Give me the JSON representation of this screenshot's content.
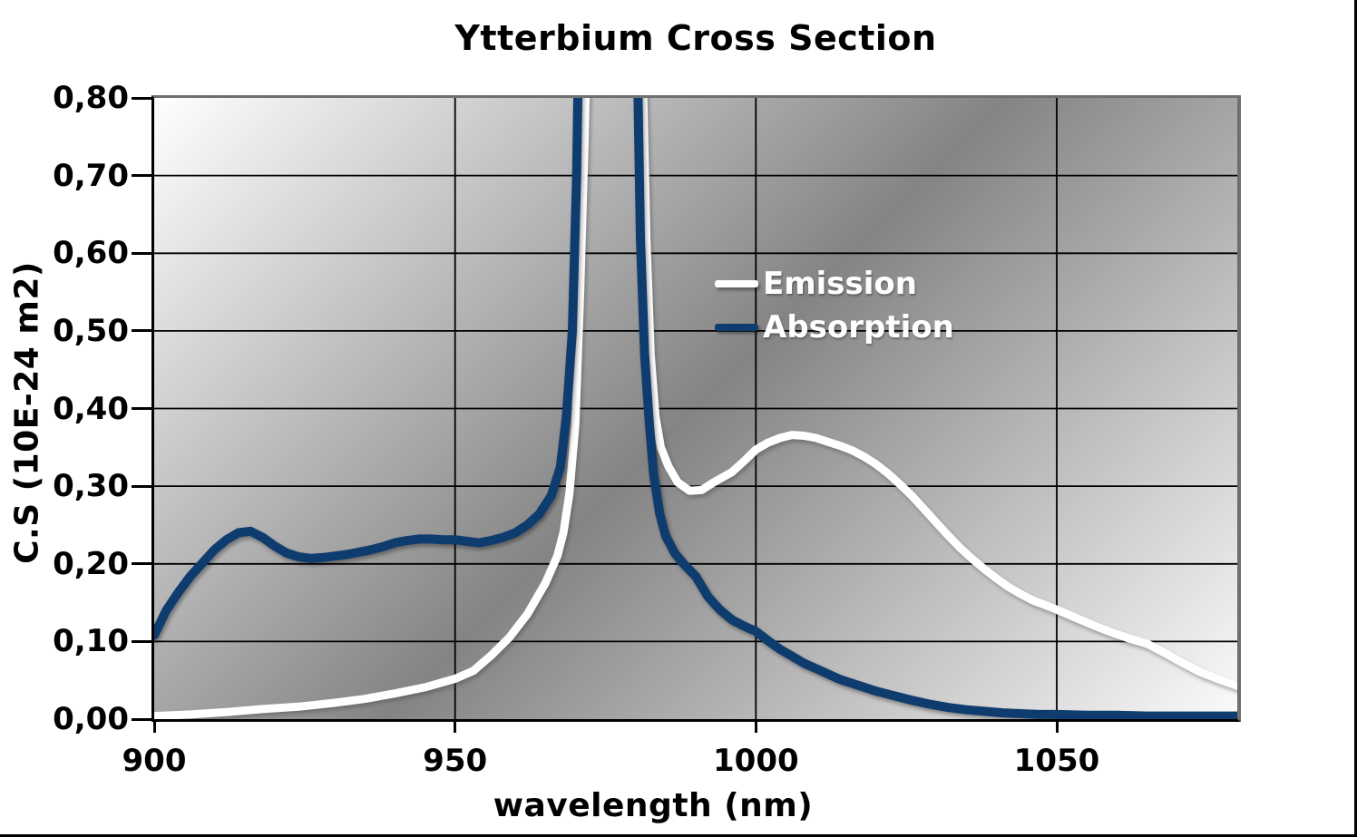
{
  "title": "Ytterbium Cross Section",
  "colors": {
    "emission_line": "#ffffff",
    "absorption_line": "#0f3c6e",
    "gridline": "#000000",
    "plot_border_gray": "#6f6f6f",
    "axis_line": "#000000",
    "plot_gradient": [
      "#ffffff",
      "#848484",
      "#fbfbfb"
    ],
    "page_background": "#ffffff"
  },
  "chart_data": {
    "type": "line",
    "title": "Ytterbium Cross Section",
    "xlabel": "wavelength (nm)",
    "ylabel": "C.S (10E-24 m2)",
    "xlim": [
      900,
      1080
    ],
    "ylim": [
      0,
      0.8
    ],
    "grid": true,
    "plot_background": "diagonal gradient, white at top-left and bottom-right, gray in the middle band",
    "legend": {
      "position": "inside, upper middle of plot",
      "entries": [
        "Emission",
        "Absorption"
      ]
    },
    "x_ticks": [
      {
        "value": 900,
        "label": "900"
      },
      {
        "value": 950,
        "label": "950"
      },
      {
        "value": 1000,
        "label": "1000"
      },
      {
        "value": 1050,
        "label": "1050"
      }
    ],
    "y_ticks": [
      {
        "value": 0.8,
        "label": "0,80"
      },
      {
        "value": 0.7,
        "label": "0,70"
      },
      {
        "value": 0.6,
        "label": "0,60"
      },
      {
        "value": 0.5,
        "label": "0,50"
      },
      {
        "value": 0.4,
        "label": "0,40"
      },
      {
        "value": 0.3,
        "label": "0,30"
      },
      {
        "value": 0.2,
        "label": "0,20"
      },
      {
        "value": 0.1,
        "label": "0,10"
      },
      {
        "value": 0.0,
        "label": "0,00"
      }
    ],
    "off_scale_note": "Both curves spike off-scale (> 0.80) between ~970 nm and ~981 nm; points with value 0.9 represent the clipped peak segments.",
    "series": [
      {
        "name": "Emission",
        "color": "#ffffff",
        "stroke_width": 9,
        "points": [
          [
            900,
            0.004
          ],
          [
            906,
            0.006
          ],
          [
            912,
            0.009
          ],
          [
            918,
            0.013
          ],
          [
            924,
            0.016
          ],
          [
            930,
            0.021
          ],
          [
            935,
            0.026
          ],
          [
            940,
            0.033
          ],
          [
            945,
            0.041
          ],
          [
            950,
            0.052
          ],
          [
            953,
            0.062
          ],
          [
            956,
            0.082
          ],
          [
            959,
            0.105
          ],
          [
            962,
            0.135
          ],
          [
            965,
            0.175
          ],
          [
            967,
            0.21
          ],
          [
            968,
            0.24
          ],
          [
            969,
            0.29
          ],
          [
            970,
            0.38
          ],
          [
            970.8,
            0.55
          ],
          [
            971.5,
            0.74
          ],
          [
            972,
            0.9
          ],
          [
            981,
            0.9
          ],
          [
            981.8,
            0.62
          ],
          [
            982.5,
            0.47
          ],
          [
            983.3,
            0.39
          ],
          [
            984.2,
            0.35
          ],
          [
            985.5,
            0.325
          ],
          [
            987,
            0.305
          ],
          [
            989,
            0.294
          ],
          [
            991,
            0.295
          ],
          [
            993,
            0.305
          ],
          [
            996,
            0.318
          ],
          [
            998,
            0.332
          ],
          [
            1000,
            0.347
          ],
          [
            1002,
            0.356
          ],
          [
            1004,
            0.362
          ],
          [
            1006,
            0.366
          ],
          [
            1008,
            0.365
          ],
          [
            1010,
            0.362
          ],
          [
            1012,
            0.357
          ],
          [
            1014,
            0.352
          ],
          [
            1016,
            0.346
          ],
          [
            1018,
            0.338
          ],
          [
            1020,
            0.328
          ],
          [
            1022,
            0.316
          ],
          [
            1024,
            0.302
          ],
          [
            1026,
            0.287
          ],
          [
            1028,
            0.27
          ],
          [
            1030,
            0.253
          ],
          [
            1032,
            0.236
          ],
          [
            1034,
            0.22
          ],
          [
            1036,
            0.206
          ],
          [
            1038,
            0.193
          ],
          [
            1040,
            0.181
          ],
          [
            1042,
            0.17
          ],
          [
            1044,
            0.161
          ],
          [
            1046,
            0.153
          ],
          [
            1048,
            0.147
          ],
          [
            1050,
            0.141
          ],
          [
            1053,
            0.131
          ],
          [
            1056,
            0.121
          ],
          [
            1059,
            0.112
          ],
          [
            1062,
            0.104
          ],
          [
            1065,
            0.097
          ],
          [
            1068,
            0.085
          ],
          [
            1071,
            0.072
          ],
          [
            1074,
            0.06
          ],
          [
            1077,
            0.051
          ],
          [
            1080,
            0.043
          ]
        ]
      },
      {
        "name": "Absorption",
        "color": "#0f3c6e",
        "stroke_width": 10,
        "points": [
          [
            900,
            0.108
          ],
          [
            902,
            0.14
          ],
          [
            904,
            0.163
          ],
          [
            906,
            0.184
          ],
          [
            908,
            0.201
          ],
          [
            910,
            0.218
          ],
          [
            912,
            0.231
          ],
          [
            914,
            0.24
          ],
          [
            916,
            0.242
          ],
          [
            918,
            0.234
          ],
          [
            920,
            0.223
          ],
          [
            922,
            0.214
          ],
          [
            924,
            0.209
          ],
          [
            926,
            0.207
          ],
          [
            928,
            0.208
          ],
          [
            930,
            0.21
          ],
          [
            932,
            0.212
          ],
          [
            934,
            0.215
          ],
          [
            936,
            0.218
          ],
          [
            938,
            0.222
          ],
          [
            940,
            0.227
          ],
          [
            942,
            0.23
          ],
          [
            944,
            0.232
          ],
          [
            946,
            0.232
          ],
          [
            948,
            0.231
          ],
          [
            950,
            0.231
          ],
          [
            952,
            0.229
          ],
          [
            954,
            0.227
          ],
          [
            956,
            0.23
          ],
          [
            958,
            0.234
          ],
          [
            960,
            0.24
          ],
          [
            962,
            0.25
          ],
          [
            964,
            0.264
          ],
          [
            966,
            0.288
          ],
          [
            967.5,
            0.325
          ],
          [
            968.5,
            0.39
          ],
          [
            969.5,
            0.5
          ],
          [
            970.2,
            0.7
          ],
          [
            970.6,
            0.9
          ],
          [
            980.2,
            0.9
          ],
          [
            980.8,
            0.62
          ],
          [
            981.5,
            0.47
          ],
          [
            982.3,
            0.38
          ],
          [
            983,
            0.315
          ],
          [
            984,
            0.265
          ],
          [
            985,
            0.236
          ],
          [
            986.5,
            0.214
          ],
          [
            988,
            0.2
          ],
          [
            990,
            0.184
          ],
          [
            992,
            0.158
          ],
          [
            994,
            0.141
          ],
          [
            996,
            0.128
          ],
          [
            998,
            0.12
          ],
          [
            1000,
            0.113
          ],
          [
            1002,
            0.101
          ],
          [
            1004,
            0.09
          ],
          [
            1006,
            0.081
          ],
          [
            1008,
            0.072
          ],
          [
            1010,
            0.065
          ],
          [
            1012,
            0.058
          ],
          [
            1014,
            0.051
          ],
          [
            1016,
            0.046
          ],
          [
            1018,
            0.041
          ],
          [
            1020,
            0.036
          ],
          [
            1023,
            0.03
          ],
          [
            1026,
            0.024
          ],
          [
            1029,
            0.019
          ],
          [
            1032,
            0.015
          ],
          [
            1035,
            0.012
          ],
          [
            1038,
            0.01
          ],
          [
            1041,
            0.008
          ],
          [
            1044,
            0.007
          ],
          [
            1047,
            0.006
          ],
          [
            1050,
            0.006
          ],
          [
            1055,
            0.005
          ],
          [
            1060,
            0.005
          ],
          [
            1065,
            0.004
          ],
          [
            1070,
            0.004
          ],
          [
            1075,
            0.004
          ],
          [
            1080,
            0.004
          ]
        ]
      }
    ]
  }
}
